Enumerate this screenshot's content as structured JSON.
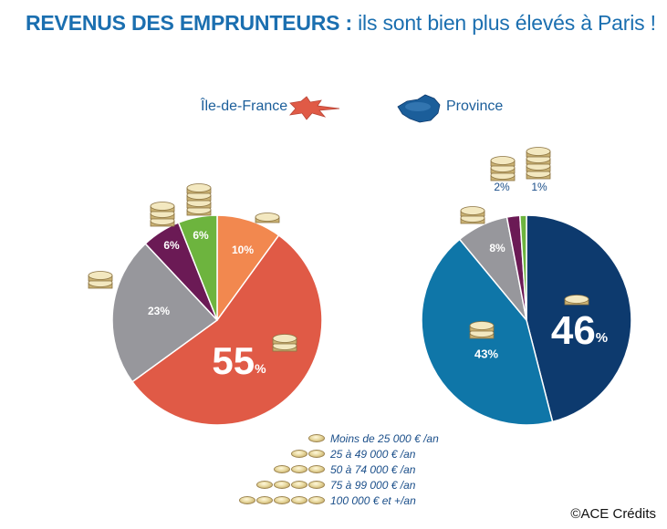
{
  "title": {
    "bold": "REVENUS DES EMPRUNTEURS :",
    "rest": "ils sont bien plus élevés à Paris !"
  },
  "legend_regions": {
    "idf": "Île-de-France",
    "province": "Province"
  },
  "income_legend": [
    {
      "label": "Moins de 25 000 € /an",
      "coins": 1
    },
    {
      "label": "25 à 49 000 € /an",
      "coins": 2
    },
    {
      "label": "50 à 74 000 € /an",
      "coins": 3
    },
    {
      "label": "75 à 99 000 € /an",
      "coins": 4
    },
    {
      "label": "100 000 € et +/an",
      "coins": 5
    }
  ],
  "copyright": "©ACE Crédits",
  "chart_data": [
    {
      "type": "pie",
      "title": "Île-de-France",
      "slices": [
        {
          "label": "10%",
          "value": 10,
          "category": "Moins de 25 000 € /an",
          "color": "#f2884f"
        },
        {
          "label": "55%",
          "value": 55,
          "category": "25 à 49 000 € /an",
          "color": "#e05a46"
        },
        {
          "label": "23%",
          "value": 23,
          "category": "50 à 74 000 € /an",
          "color": "#97979c"
        },
        {
          "label": "6%",
          "value": 6,
          "category": "75 à 99 000 € /an",
          "color": "#6b1a55"
        },
        {
          "label": "6%",
          "value": 6,
          "category": "100 000 € et +/an",
          "color": "#6db43e"
        }
      ]
    },
    {
      "type": "pie",
      "title": "Province",
      "slices": [
        {
          "label": "46%",
          "value": 46,
          "category": "Moins de 25 000 € /an",
          "color": "#0d3a6e"
        },
        {
          "label": "43%",
          "value": 43,
          "category": "25 à 49 000 € /an",
          "color": "#0f76a8"
        },
        {
          "label": "8%",
          "value": 8,
          "category": "50 à 74 000 € /an",
          "color": "#97979c"
        },
        {
          "label": "2%",
          "value": 2,
          "category": "75 à 99 000 € /an",
          "color": "#6b1a55"
        },
        {
          "label": "1%",
          "value": 1,
          "category": "100 000 € et +/an",
          "color": "#6db43e"
        }
      ]
    }
  ]
}
